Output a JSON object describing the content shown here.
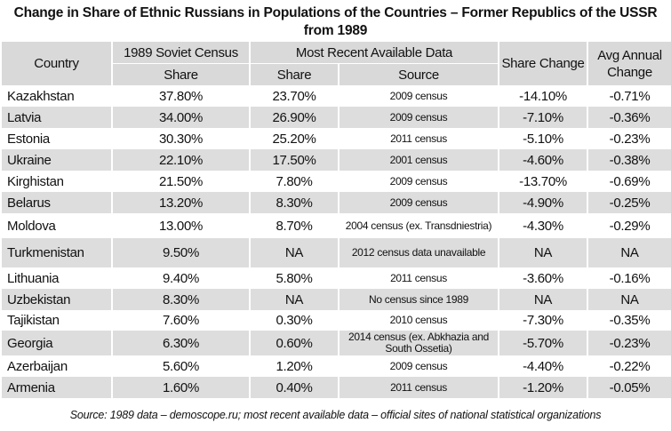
{
  "title": "Change in Share of Ethnic Russians in Populations of the Countries – Former Republics of the USSR from 1989",
  "headers": {
    "country": "Country",
    "census1989": "1989 Soviet Census",
    "share1989": "Share",
    "recent": "Most Recent Available Data",
    "recent_share": "Share",
    "recent_source": "Source",
    "share_change": "Share Change",
    "avg_change": "Avg Annual Change"
  },
  "rows": [
    {
      "country": "Kazakhstan",
      "share1989": "37.80%",
      "share": "23.70%",
      "source": "2009 census",
      "change": "-14.10%",
      "avg": "-0.71%"
    },
    {
      "country": "Latvia",
      "share1989": "34.00%",
      "share": "26.90%",
      "source": "2009 census",
      "change": "-7.10%",
      "avg": "-0.36%"
    },
    {
      "country": "Estonia",
      "share1989": "30.30%",
      "share": "25.20%",
      "source": "2011 census",
      "change": "-5.10%",
      "avg": "-0.23%"
    },
    {
      "country": "Ukraine",
      "share1989": "22.10%",
      "share": "17.50%",
      "source": "2001 census",
      "change": "-4.60%",
      "avg": "-0.38%"
    },
    {
      "country": "Kirghistan",
      "share1989": "21.50%",
      "share": "7.80%",
      "source": "2009 census",
      "change": "-13.70%",
      "avg": "-0.69%"
    },
    {
      "country": "Belarus",
      "share1989": "13.20%",
      "share": "8.30%",
      "source": "2009 census",
      "change": "-4.90%",
      "avg": "-0.25%"
    },
    {
      "country": "Moldova",
      "share1989": "13.00%",
      "share": "8.70%",
      "source": "2004 census (ex. Transdniestria)",
      "change": "-4.30%",
      "avg": "-0.29%"
    },
    {
      "country": "Turkmenistan",
      "share1989": "9.50%",
      "share": "NA",
      "source": "2012 census data unavailable",
      "change": "NA",
      "avg": "NA"
    },
    {
      "country": "Lithuania",
      "share1989": "9.40%",
      "share": "5.80%",
      "source": "2011 census",
      "change": "-3.60%",
      "avg": "-0.16%"
    },
    {
      "country": "Uzbekistan",
      "share1989": "8.30%",
      "share": "NA",
      "source": "No census since 1989",
      "change": "NA",
      "avg": "NA"
    },
    {
      "country": "Tajikistan",
      "share1989": "7.60%",
      "share": "0.30%",
      "source": "2010 census",
      "change": "-7.30%",
      "avg": "-0.35%"
    },
    {
      "country": "Georgia",
      "share1989": "6.30%",
      "share": "0.60%",
      "source": "2014 census (ex. Abkhazia and South Ossetia)",
      "change": "-5.70%",
      "avg": "-0.23%"
    },
    {
      "country": "Azerbaijan",
      "share1989": "5.60%",
      "share": "1.20%",
      "source": "2009 census",
      "change": "-4.40%",
      "avg": "-0.22%"
    },
    {
      "country": "Armenia",
      "share1989": "1.60%",
      "share": "0.40%",
      "source": "2011 census",
      "change": "-1.20%",
      "avg": "-0.05%"
    }
  ],
  "footer": "Source: 1989 data – demoscope.ru; most recent available data – official sites of national statistical organizations"
}
